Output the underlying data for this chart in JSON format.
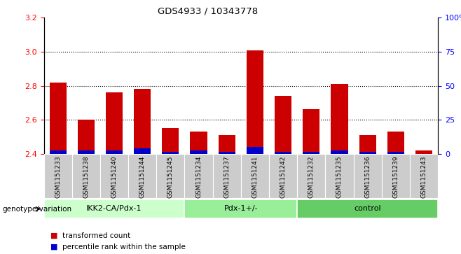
{
  "title": "GDS4933 / 10343778",
  "samples": [
    "GSM1151233",
    "GSM1151238",
    "GSM1151240",
    "GSM1151244",
    "GSM1151245",
    "GSM1151234",
    "GSM1151237",
    "GSM1151241",
    "GSM1151242",
    "GSM1151232",
    "GSM1151235",
    "GSM1151236",
    "GSM1151239",
    "GSM1151243"
  ],
  "red_values": [
    2.82,
    2.6,
    2.76,
    2.78,
    2.55,
    2.53,
    2.51,
    3.01,
    2.74,
    2.66,
    2.81,
    2.51,
    2.53,
    2.42
  ],
  "blue_values": [
    2.42,
    2.42,
    2.42,
    2.43,
    2.41,
    2.42,
    2.41,
    2.44,
    2.41,
    2.41,
    2.42,
    2.41,
    2.41,
    2.4
  ],
  "groups": [
    {
      "label": "IKK2-CA/Pdx-1",
      "start": 0,
      "end": 5,
      "color": "#ccffcc"
    },
    {
      "label": "Pdx-1+/-",
      "start": 5,
      "end": 9,
      "color": "#99ee99"
    },
    {
      "label": "control",
      "start": 9,
      "end": 14,
      "color": "#66cc66"
    }
  ],
  "ylim_left": [
    2.4,
    3.2
  ],
  "ylim_right": [
    0,
    100
  ],
  "yticks_left": [
    2.4,
    2.6,
    2.8,
    3.0,
    3.2
  ],
  "yticks_right": [
    0,
    25,
    50,
    75,
    100
  ],
  "ytick_labels_right": [
    "0",
    "25",
    "50",
    "75",
    "100%"
  ],
  "grid_values": [
    2.6,
    2.8,
    3.0
  ],
  "bar_width": 0.6,
  "bar_color_red": "#cc0000",
  "bar_color_blue": "#0000cc",
  "tick_area_color": "#cccccc",
  "legend_red": "transformed count",
  "legend_blue": "percentile rank within the sample",
  "ybase": 2.4,
  "genotype_label": "genotype/variation"
}
